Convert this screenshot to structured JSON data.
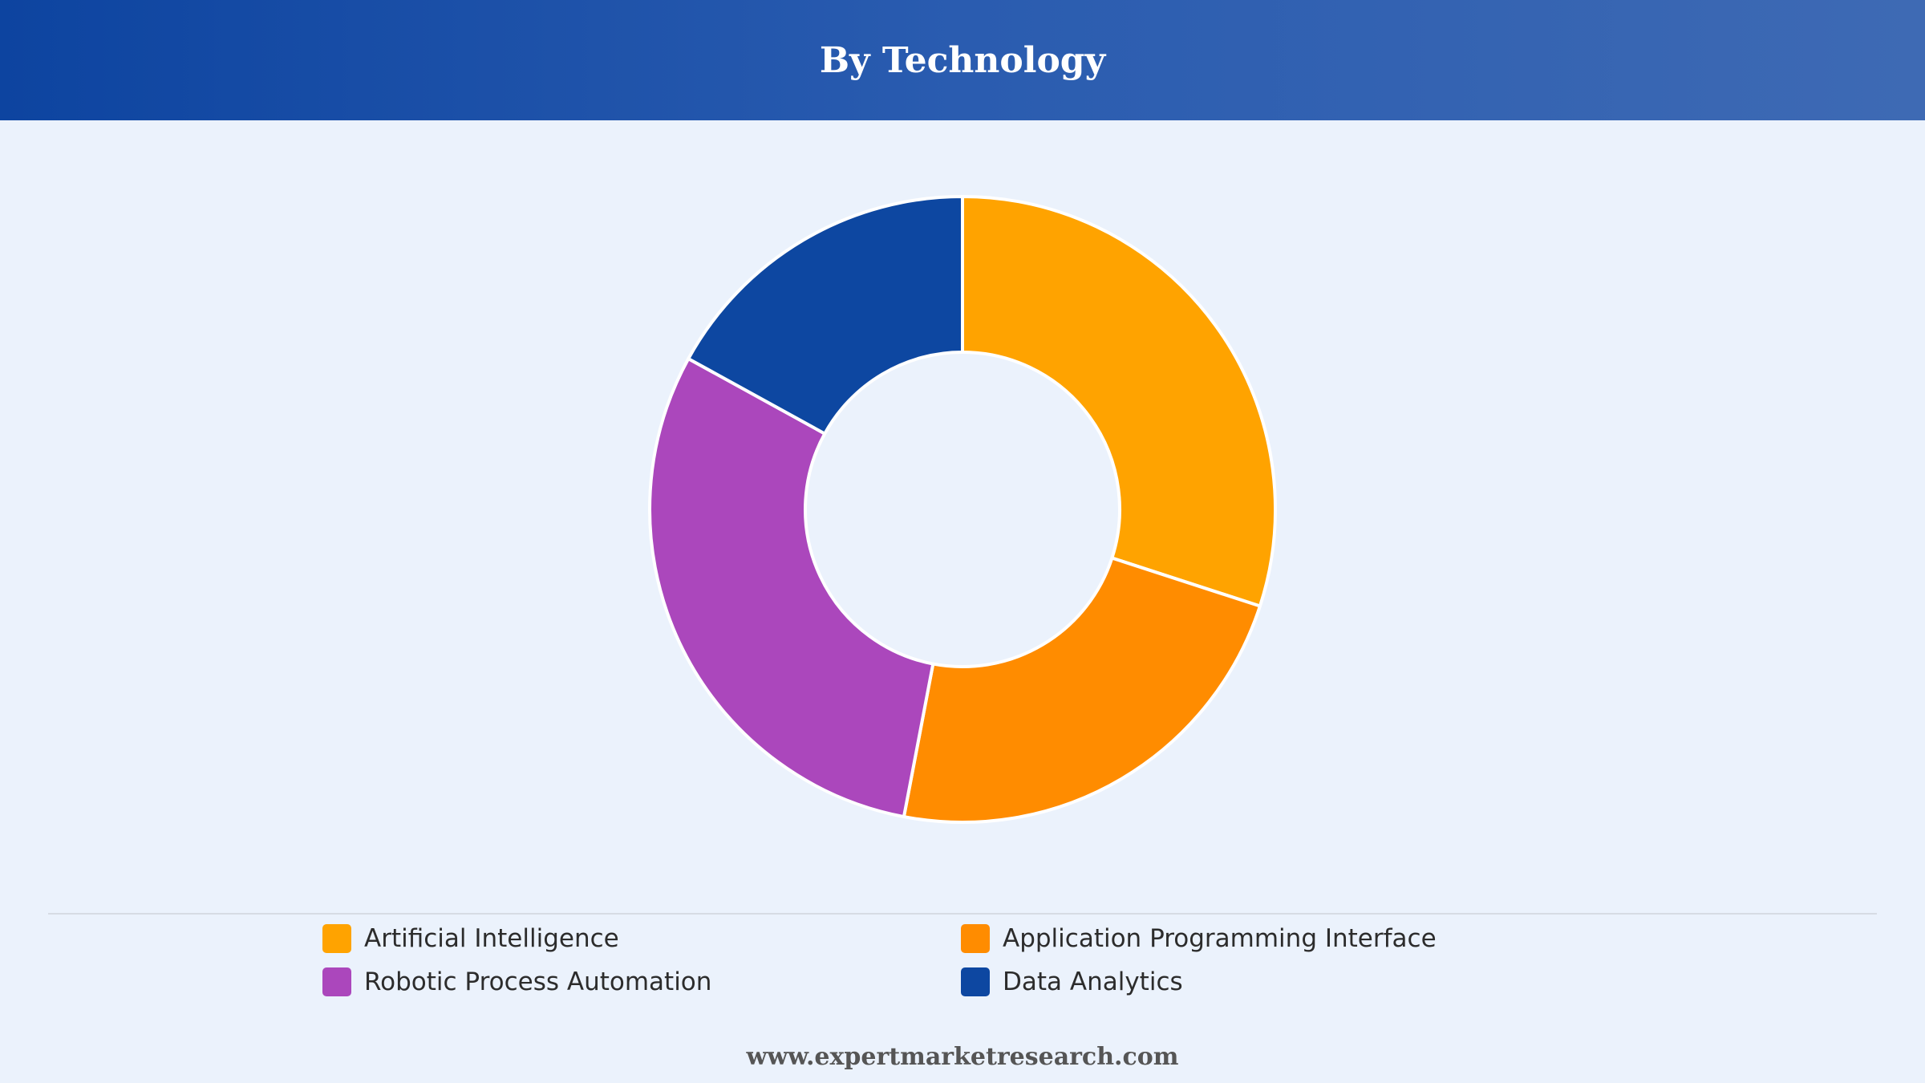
{
  "header": {
    "title": "By Technology"
  },
  "chart_data": {
    "type": "pie",
    "donut": true,
    "title": "By Technology",
    "categories": [
      "Artificial Intelligence",
      "Application Programming Interface",
      "Robotic Process Automation",
      "Data Analytics"
    ],
    "values": [
      30,
      23,
      30,
      17
    ],
    "colors": [
      "#ffa300",
      "#ff8c00",
      "#ab47bc",
      "#0d47a1"
    ],
    "legend_position": "bottom"
  },
  "legend": {
    "items": [
      {
        "label": "Artificial Intelligence",
        "color": "#ffa300"
      },
      {
        "label": "Application Programming Interface",
        "color": "#ff8c00"
      },
      {
        "label": "Robotic Process Automation",
        "color": "#ab47bc"
      },
      {
        "label": "Data Analytics",
        "color": "#0d47a1"
      }
    ]
  },
  "footer": {
    "source": "www.expertmarketresearch.com"
  }
}
